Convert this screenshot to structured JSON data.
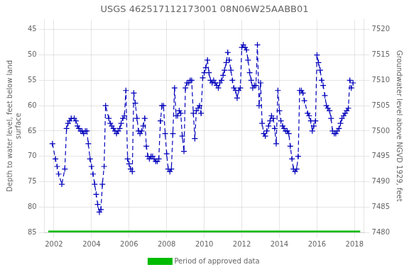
{
  "chart_data": {
    "type": "line",
    "title": "USGS 462517112173001 08N06W25AABB01",
    "ylabel": "Depth to water level, feet below land\nsurface",
    "y2label": "Groundwater level above NGVD 1929, feet",
    "xlim": [
      2001.5,
      2018.5
    ],
    "xticks": [
      2002,
      2004,
      2006,
      2008,
      2010,
      2012,
      2014,
      2016,
      2018
    ],
    "ylim": [
      85,
      43
    ],
    "yticks": [
      45,
      50,
      55,
      60,
      65,
      70,
      75,
      80,
      85
    ],
    "y2lim": [
      7480,
      7522
    ],
    "y2ticks": [
      7480,
      7485,
      7490,
      7495,
      7500,
      7505,
      7510,
      7515,
      7520
    ],
    "grid": true,
    "legend": "bottom",
    "series": [
      {
        "color": "#0000bb",
        "marker": "plus",
        "line_style": "dashed",
        "x": [
          2001.92,
          2002.08,
          2002.17,
          2002.25,
          2002.42,
          2002.58,
          2002.67,
          2002.75,
          2002.83,
          2002.92,
          2003.08,
          2003.17,
          2003.25,
          2003.33,
          2003.42,
          2003.5,
          2003.58,
          2003.67,
          2003.75,
          2003.83,
          2003.92,
          2004.0,
          2004.08,
          2004.17,
          2004.25,
          2004.33,
          2004.42,
          2004.5,
          2004.58,
          2004.67,
          2004.75,
          2004.92,
          2005.0,
          2005.08,
          2005.17,
          2005.25,
          2005.33,
          2005.42,
          2005.5,
          2005.58,
          2005.67,
          2005.75,
          2005.83,
          2005.92,
          2006.0,
          2006.08,
          2006.17,
          2006.25,
          2006.33,
          2006.42,
          2006.5,
          2006.58,
          2006.67,
          2006.75,
          2006.83,
          2006.92,
          2007.0,
          2007.08,
          2007.17,
          2007.25,
          2007.33,
          2007.42,
          2007.5,
          2007.58,
          2007.67,
          2007.75,
          2007.83,
          2007.92,
          2008.0,
          2008.08,
          2008.17,
          2008.25,
          2008.33,
          2008.42,
          2008.5,
          2008.58,
          2008.67,
          2008.75,
          2008.83,
          2008.92,
          2009.0,
          2009.08,
          2009.17,
          2009.25,
          2009.33,
          2009.42,
          2009.5,
          2009.58,
          2009.67,
          2009.75,
          2009.83,
          2009.92,
          2010.0,
          2010.08,
          2010.17,
          2010.25,
          2010.33,
          2010.42,
          2010.5,
          2010.58,
          2010.67,
          2010.75,
          2010.83,
          2010.92,
          2011.0,
          2011.08,
          2011.17,
          2011.25,
          2011.33,
          2011.42,
          2011.5,
          2011.58,
          2011.67,
          2011.75,
          2011.83,
          2011.92,
          2012.0,
          2012.08,
          2012.17,
          2012.25,
          2012.33,
          2012.42,
          2012.5,
          2012.58,
          2012.67,
          2012.75,
          2012.83,
          2012.92,
          2013.0,
          2013.08,
          2013.17,
          2013.25,
          2013.33,
          2013.42,
          2013.5,
          2013.58,
          2013.67,
          2013.75,
          2013.83,
          2013.92,
          2014.0,
          2014.08,
          2014.17,
          2014.25,
          2014.33,
          2014.42,
          2014.5,
          2014.58,
          2014.67,
          2014.75,
          2014.83,
          2014.92,
          2015.0,
          2015.08,
          2015.17,
          2015.25,
          2015.33,
          2015.5,
          2015.58,
          2015.67,
          2015.75,
          2015.83,
          2015.92,
          2016.0,
          2016.08,
          2016.17,
          2016.25,
          2016.33,
          2016.42,
          2016.5,
          2016.58,
          2016.67,
          2016.75,
          2016.83,
          2016.92,
          2017.0,
          2017.08,
          2017.17,
          2017.25,
          2017.33,
          2017.42,
          2017.5,
          2017.58,
          2017.67,
          2017.75,
          2017.83,
          2017.92
        ],
        "values": [
          67.5,
          70.5,
          72.0,
          73.5,
          75.5,
          72.5,
          64.5,
          63.5,
          63.0,
          62.5,
          62.5,
          63.0,
          64.0,
          64.5,
          65.0,
          65.0,
          65.5,
          65.0,
          65.0,
          67.5,
          70.5,
          72.0,
          73.5,
          75.5,
          77.5,
          79.5,
          81.0,
          80.5,
          75.5,
          72.0,
          60.0,
          62.5,
          63.5,
          64.0,
          64.5,
          65.0,
          65.5,
          65.0,
          64.5,
          63.5,
          62.5,
          62.0,
          57.0,
          70.5,
          71.5,
          72.5,
          73.0,
          57.5,
          59.5,
          62.5,
          65.0,
          65.5,
          65.0,
          64.0,
          62.5,
          68.0,
          70.0,
          70.5,
          70.0,
          70.0,
          70.5,
          71.0,
          71.0,
          70.5,
          63.0,
          60.0,
          60.0,
          65.5,
          69.5,
          72.5,
          73.0,
          72.5,
          65.5,
          56.5,
          62.0,
          62.0,
          61.0,
          61.5,
          66.0,
          69.0,
          56.5,
          55.5,
          55.5,
          55.0,
          55.0,
          61.5,
          66.5,
          61.0,
          60.5,
          60.0,
          61.5,
          54.5,
          53.5,
          52.5,
          51.0,
          53.5,
          55.0,
          55.5,
          55.0,
          55.5,
          56.0,
          56.5,
          55.5,
          55.0,
          54.0,
          53.0,
          51.5,
          49.5,
          51.0,
          53.0,
          55.0,
          56.5,
          57.0,
          58.5,
          57.0,
          56.5,
          48.5,
          48.0,
          48.5,
          49.0,
          51.0,
          53.5,
          55.0,
          56.5,
          56.0,
          56.0,
          48.0,
          60.0,
          55.5,
          63.5,
          65.5,
          66.0,
          65.0,
          64.0,
          63.0,
          62.0,
          62.5,
          64.5,
          67.5,
          57.0,
          61.0,
          63.0,
          64.0,
          64.5,
          65.0,
          65.0,
          65.5,
          68.0,
          70.5,
          72.5,
          73.0,
          72.5,
          70.0,
          57.0,
          57.0,
          57.5,
          59.0,
          61.5,
          62.0,
          63.0,
          65.0,
          64.0,
          63.0,
          50.0,
          51.5,
          53.0,
          55.0,
          56.0,
          58.0,
          60.0,
          60.5,
          61.0,
          62.5,
          65.0,
          65.5,
          65.5,
          65.0,
          64.5,
          63.5,
          62.5,
          62.0,
          61.5,
          61.0,
          60.5,
          55.0,
          56.5,
          55.5
        ]
      },
      {
        "name": "Period of approved data",
        "color": "#00bb00",
        "marker": "none",
        "line_style": "solid",
        "x": [
          2001.7,
          2018.3
        ],
        "values": [
          85.0,
          85.0
        ]
      }
    ]
  }
}
